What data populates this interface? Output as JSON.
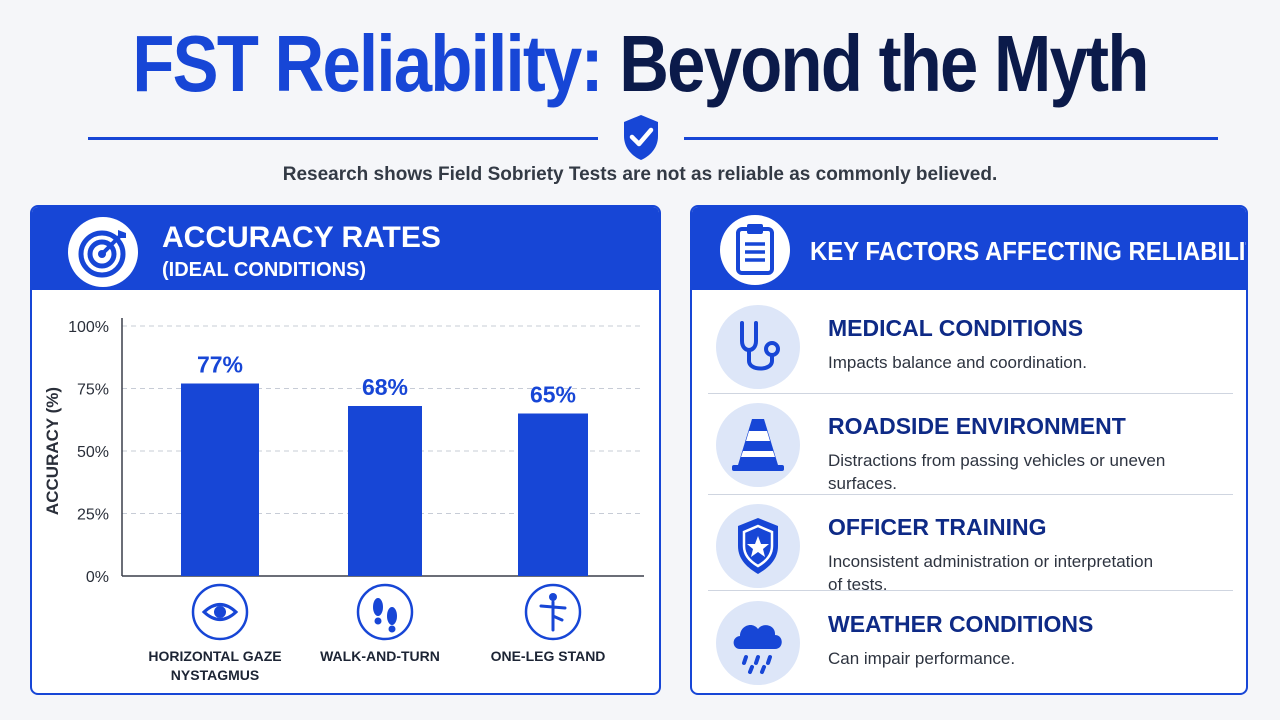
{
  "title": {
    "part1": "FST Reliability:",
    "part2": "Beyond the Myth"
  },
  "subtitle": "Research shows Field Sobriety Tests are not as reliable as commonly believed.",
  "left_panel": {
    "title": "ACCURACY RATES",
    "subtitle": "(IDEAL CONDITIONS)",
    "icon": "target-icon"
  },
  "chart_data": {
    "type": "bar",
    "categories": [
      "HORIZONTAL GAZE NYSTAGMUS",
      "WALK-AND-TURN",
      "ONE-LEG STAND"
    ],
    "category_lines": [
      [
        "HORIZONTAL GAZE",
        "NYSTAGMUS"
      ],
      [
        "WALK-AND-TURN"
      ],
      [
        "ONE-LEG STAND"
      ]
    ],
    "category_icons": [
      "eye-icon",
      "footprints-icon",
      "one-leg-stand-icon"
    ],
    "values": [
      77,
      68,
      65
    ],
    "value_labels": [
      "77%",
      "68%",
      "65%"
    ],
    "ylabel": "ACCURACY (%)",
    "yticks": [
      0,
      25,
      50,
      75,
      100
    ],
    "ytick_labels": [
      "0%",
      "25%",
      "50%",
      "75%",
      "100%"
    ],
    "ylim": [
      0,
      100
    ],
    "grid": true,
    "bar_color": "#1746d6"
  },
  "right_panel": {
    "title": "KEY FACTORS AFFECTING RELIABILITY",
    "icon": "clipboard-icon",
    "factors": [
      {
        "title": "MEDICAL CONDITIONS",
        "desc": "Impacts balance and coordination.",
        "icon": "stethoscope-icon"
      },
      {
        "title": "ROADSIDE ENVIRONMENT",
        "desc": "Distractions from passing vehicles or uneven surfaces.",
        "icon": "traffic-cone-icon"
      },
      {
        "title": "OFFICER TRAINING",
        "desc": "Inconsistent administration or interpretation of tests.",
        "icon": "police-badge-icon"
      },
      {
        "title": "WEATHER CONDITIONS",
        "desc": "Can impair performance.",
        "icon": "rain-cloud-icon"
      }
    ]
  },
  "colors": {
    "accent": "#1746d6",
    "dark": "#0b1a4a",
    "factor_title": "#0e2a86",
    "icon_bg": "#dde6f8"
  }
}
